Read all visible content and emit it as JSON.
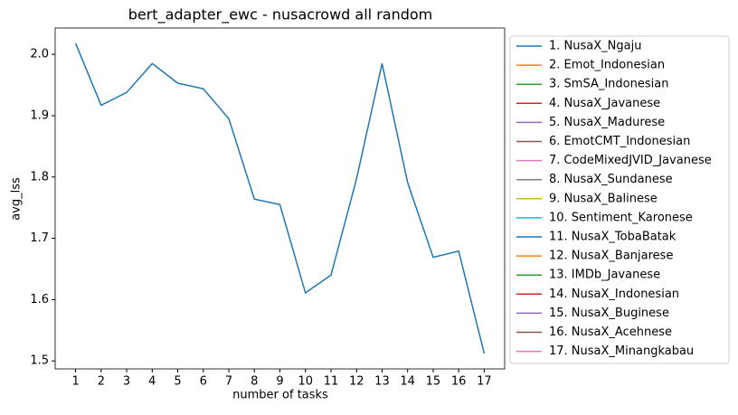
{
  "chart_data": {
    "type": "line",
    "title": "bert_adapter_ewc - nusacrowd all random",
    "xlabel": "number of tasks",
    "ylabel": "avg_lss",
    "x": [
      1,
      2,
      3,
      4,
      5,
      6,
      7,
      8,
      9,
      10,
      11,
      12,
      13,
      14,
      15,
      16,
      17
    ],
    "xlim": [
      0.2,
      17.8
    ],
    "xticks": [
      1,
      2,
      3,
      4,
      5,
      6,
      7,
      8,
      9,
      10,
      11,
      12,
      13,
      14,
      15,
      16,
      17
    ],
    "ylim": [
      1.487,
      2.043
    ],
    "yticks": [
      {
        "value": 1.5,
        "label": "1.5"
      },
      1.6,
      1.7,
      1.8,
      1.9,
      {
        "value": 2.0,
        "label": "2.0"
      }
    ],
    "legend": "outside right",
    "series": [
      {
        "name": "1. NusaX_Ngaju",
        "color": "#1f77b4",
        "values": [
          2.018,
          1.917,
          1.938,
          1.985,
          1.953,
          1.944,
          1.895,
          1.764,
          1.755,
          1.611,
          1.64,
          1.797,
          1.985,
          1.791,
          1.669,
          1.679,
          1.512
        ]
      },
      {
        "name": "2. Emot_Indonesian",
        "color": "#ff7f0e",
        "values": [
          null,
          null,
          null,
          null,
          null,
          null,
          null,
          null,
          null,
          null,
          null,
          null,
          null,
          null,
          null,
          null,
          null
        ]
      },
      {
        "name": "3. SmSA_Indonesian",
        "color": "#2ca02c",
        "values": [
          null,
          null,
          null,
          null,
          null,
          null,
          null,
          null,
          null,
          null,
          null,
          null,
          null,
          null,
          null,
          null,
          null
        ]
      },
      {
        "name": "4. NusaX_Javanese",
        "color": "#d62728",
        "values": [
          null,
          null,
          null,
          null,
          null,
          null,
          null,
          null,
          null,
          null,
          null,
          null,
          null,
          null,
          null,
          null,
          null
        ]
      },
      {
        "name": "5. NusaX_Madurese",
        "color": "#9467bd",
        "values": [
          null,
          null,
          null,
          null,
          null,
          null,
          null,
          null,
          null,
          null,
          null,
          null,
          null,
          null,
          null,
          null,
          null
        ]
      },
      {
        "name": "6. EmotCMT_Indonesian",
        "color": "#8c564b",
        "values": [
          null,
          null,
          null,
          null,
          null,
          null,
          null,
          null,
          null,
          null,
          null,
          null,
          null,
          null,
          null,
          null,
          null
        ]
      },
      {
        "name": "7. CodeMixedJVID_Javanese",
        "color": "#e377c2",
        "values": [
          null,
          null,
          null,
          null,
          null,
          null,
          null,
          null,
          null,
          null,
          null,
          null,
          null,
          null,
          null,
          null,
          null
        ]
      },
      {
        "name": "8. NusaX_Sundanese",
        "color": "#7f7f7f",
        "values": [
          null,
          null,
          null,
          null,
          null,
          null,
          null,
          null,
          null,
          null,
          null,
          null,
          null,
          null,
          null,
          null,
          null
        ]
      },
      {
        "name": "9. NusaX_Balinese",
        "color": "#bcbd22",
        "values": [
          null,
          null,
          null,
          null,
          null,
          null,
          null,
          null,
          null,
          null,
          null,
          null,
          null,
          null,
          null,
          null,
          null
        ]
      },
      {
        "name": "10. Sentiment_Karonese",
        "color": "#17becf",
        "values": [
          null,
          null,
          null,
          null,
          null,
          null,
          null,
          null,
          null,
          null,
          null,
          null,
          null,
          null,
          null,
          null,
          null
        ]
      },
      {
        "name": "11. NusaX_TobaBatak",
        "color": "#1f77b4",
        "values": [
          null,
          null,
          null,
          null,
          null,
          null,
          null,
          null,
          null,
          null,
          null,
          null,
          null,
          null,
          null,
          null,
          null
        ]
      },
      {
        "name": "12. NusaX_Banjarese",
        "color": "#ff7f0e",
        "values": [
          null,
          null,
          null,
          null,
          null,
          null,
          null,
          null,
          null,
          null,
          null,
          null,
          null,
          null,
          null,
          null,
          null
        ]
      },
      {
        "name": "13. IMDb_Javanese",
        "color": "#2ca02c",
        "values": [
          null,
          null,
          null,
          null,
          null,
          null,
          null,
          null,
          null,
          null,
          null,
          null,
          null,
          null,
          null,
          null,
          null
        ]
      },
      {
        "name": "14. NusaX_Indonesian",
        "color": "#d62728",
        "values": [
          null,
          null,
          null,
          null,
          null,
          null,
          null,
          null,
          null,
          null,
          null,
          null,
          null,
          null,
          null,
          null,
          null
        ]
      },
      {
        "name": "15. NusaX_Buginese",
        "color": "#9467bd",
        "values": [
          null,
          null,
          null,
          null,
          null,
          null,
          null,
          null,
          null,
          null,
          null,
          null,
          null,
          null,
          null,
          null,
          null
        ]
      },
      {
        "name": "16. NusaX_Acehnese",
        "color": "#8c564b",
        "values": [
          null,
          null,
          null,
          null,
          null,
          null,
          null,
          null,
          null,
          null,
          null,
          null,
          null,
          null,
          null,
          null,
          null
        ]
      },
      {
        "name": "17. NusaX_Minangkabau",
        "color": "#e377c2",
        "values": [
          null,
          null,
          null,
          null,
          null,
          null,
          null,
          null,
          null,
          null,
          null,
          null,
          null,
          null,
          null,
          null,
          null
        ]
      }
    ]
  }
}
